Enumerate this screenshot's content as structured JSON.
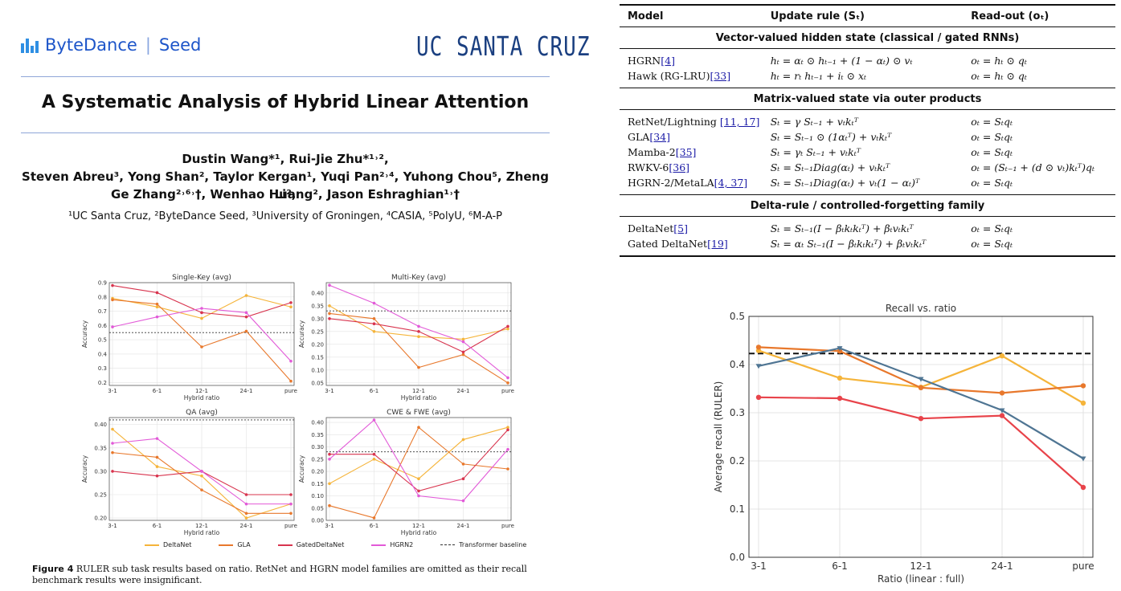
{
  "header": {
    "bytedance": "ByteDance",
    "seed": "Seed",
    "ucsc": "UC SANTA CRUZ"
  },
  "paper": {
    "title": "A Systematic Analysis of Hybrid Linear Attention",
    "authors_line1": "Dustin Wang*¹, Rui-Jie Zhu*¹˒²,",
    "authors_line2": "Steven Abreu³, Yong Shan², Taylor Kergan¹, Yuqi Pan²˒⁴, Yuhong Chou⁵, Zheng Li²,",
    "authors_line3": "Ge Zhang²˒⁶˒†, Wenhao Huang², Jason Eshraghian¹˒†",
    "affiliations": "¹UC Santa Cruz, ²ByteDance Seed, ³University of Groningen, ⁴CASIA, ⁵PolyU, ⁶M-A-P",
    "caption_label": "Figure 4",
    "caption_text": "RULER sub task results based on ratio. RetNet and HGRN model families are omitted as their recall benchmark results were insignificant."
  },
  "colors": {
    "DeltaNet": "#f5b43a",
    "GLA": "#e8782c",
    "GatedDeltaNet": "#d8344e",
    "HGRN2": "#e25ad8",
    "baseline": "#333333"
  },
  "chart_data": [
    {
      "type": "line",
      "title": "Single-Key (avg)",
      "categories": [
        "3-1",
        "6-1",
        "12-1",
        "24-1",
        "pure"
      ],
      "xlabel": "Hybrid ratio",
      "ylabel": "Accuracy",
      "ylim": [
        0.18,
        0.9
      ],
      "yticks": [
        0.2,
        0.3,
        0.4,
        0.5,
        0.6,
        0.7,
        0.8,
        0.9
      ],
      "baseline": 0.55,
      "series": [
        {
          "name": "DeltaNet",
          "values": [
            0.79,
            0.73,
            0.65,
            0.81,
            0.73
          ]
        },
        {
          "name": "GLA",
          "values": [
            0.78,
            0.75,
            0.45,
            0.56,
            0.21
          ]
        },
        {
          "name": "GatedDeltaNet",
          "values": [
            0.88,
            0.83,
            0.69,
            0.66,
            0.76
          ]
        },
        {
          "name": "HGRN2",
          "values": [
            0.59,
            0.66,
            0.72,
            0.69,
            0.35
          ]
        }
      ]
    },
    {
      "type": "line",
      "title": "Multi-Key (avg)",
      "categories": [
        "3-1",
        "6-1",
        "12-1",
        "24-1",
        "pure"
      ],
      "xlabel": "Hybrid ratio",
      "ylabel": "Accuracy",
      "ylim": [
        0.04,
        0.44
      ],
      "yticks": [
        0.05,
        0.1,
        0.15,
        0.2,
        0.25,
        0.3,
        0.35,
        0.4
      ],
      "baseline": 0.33,
      "series": [
        {
          "name": "DeltaNet",
          "values": [
            0.35,
            0.25,
            0.23,
            0.22,
            0.26
          ]
        },
        {
          "name": "GLA",
          "values": [
            0.32,
            0.3,
            0.11,
            0.16,
            0.05
          ]
        },
        {
          "name": "GatedDeltaNet",
          "values": [
            0.3,
            0.28,
            0.25,
            0.17,
            0.27
          ]
        },
        {
          "name": "HGRN2",
          "values": [
            0.43,
            0.36,
            0.27,
            0.21,
            0.07
          ]
        }
      ]
    },
    {
      "type": "line",
      "title": "QA (avg)",
      "categories": [
        "3-1",
        "6-1",
        "12-1",
        "24-1",
        "pure"
      ],
      "xlabel": "Hybrid ratio",
      "ylabel": "Accuracy",
      "ylim": [
        0.195,
        0.415
      ],
      "yticks": [
        0.2,
        0.25,
        0.3,
        0.35,
        0.4
      ],
      "baseline": 0.41,
      "series": [
        {
          "name": "DeltaNet",
          "values": [
            0.39,
            0.31,
            0.29,
            0.2,
            0.23
          ]
        },
        {
          "name": "GLA",
          "values": [
            0.34,
            0.33,
            0.26,
            0.21,
            0.21
          ]
        },
        {
          "name": "GatedDeltaNet",
          "values": [
            0.3,
            0.29,
            0.3,
            0.25,
            0.25
          ]
        },
        {
          "name": "HGRN2",
          "values": [
            0.36,
            0.37,
            0.3,
            0.23,
            0.23
          ]
        }
      ]
    },
    {
      "type": "line",
      "title": "CWE & FWE (avg)",
      "categories": [
        "3-1",
        "6-1",
        "12-1",
        "24-1",
        "pure"
      ],
      "xlabel": "Hybrid ratio",
      "ylabel": "Accuracy",
      "ylim": [
        0.0,
        0.42
      ],
      "yticks": [
        0.0,
        0.05,
        0.1,
        0.15,
        0.2,
        0.25,
        0.3,
        0.35,
        0.4
      ],
      "baseline": 0.28,
      "series": [
        {
          "name": "DeltaNet",
          "values": [
            0.15,
            0.25,
            0.17,
            0.33,
            0.38
          ]
        },
        {
          "name": "GLA",
          "values": [
            0.06,
            0.01,
            0.38,
            0.23,
            0.21
          ]
        },
        {
          "name": "GatedDeltaNet",
          "values": [
            0.27,
            0.27,
            0.12,
            0.17,
            0.37
          ]
        },
        {
          "name": "HGRN2",
          "values": [
            0.25,
            0.41,
            0.1,
            0.08,
            0.29
          ]
        }
      ]
    },
    {
      "type": "line",
      "title": "Recall vs. ratio",
      "categories": [
        "3-1",
        "6-1",
        "12-1",
        "24-1",
        "pure"
      ],
      "xlabel": "Ratio (linear : full)",
      "ylabel": "Average recall (RULER)",
      "ylim": [
        0.0,
        0.5
      ],
      "yticks": [
        0.0,
        0.1,
        0.2,
        0.3,
        0.4,
        0.5
      ],
      "baseline": 0.423,
      "series": [
        {
          "color": "#f5b43a",
          "values": [
            0.429,
            0.372,
            0.353,
            0.418,
            0.32
          ]
        },
        {
          "color": "#e8782c",
          "values": [
            0.436,
            0.428,
            0.352,
            0.341,
            0.356
          ]
        },
        {
          "color": "#e8434a",
          "values": [
            0.332,
            0.33,
            0.288,
            0.294,
            0.145
          ]
        },
        {
          "color": "#4f7593",
          "values": [
            0.397,
            0.434,
            0.37,
            0.305,
            0.205
          ]
        }
      ]
    }
  ],
  "legend": {
    "items": [
      "DeltaNet",
      "GLA",
      "GatedDeltaNet",
      "HGRN2"
    ],
    "baseline": "Transformer baseline"
  },
  "table": {
    "headers": [
      "Model",
      "Update rule (Sₜ)",
      "Read-out (oₜ)"
    ],
    "sections": [
      {
        "title": "Vector-valued hidden state (classical / gated RNNs)",
        "rows": [
          {
            "model": "HGRN",
            "ref": "[4]",
            "update": "hₜ = αₜ ⊙ hₜ₋₁ + (1 − αₜ) ⊙ vₜ",
            "readout": "oₜ = hₜ ⊙ qₜ"
          },
          {
            "model": "Hawk (RG-LRU)",
            "ref": "[33]",
            "update": "hₜ = rₜ hₜ₋₁ + iₜ ⊙ xₜ",
            "readout": "oₜ = hₜ ⊙ qₜ"
          }
        ]
      },
      {
        "title": "Matrix-valued state via outer products",
        "rows": [
          {
            "model": "RetNet/Lightning ",
            "ref": "[11, 17]",
            "update": "Sₜ = γ Sₜ₋₁ + vₜkₜᵀ",
            "readout": "oₜ = Sₜqₜ"
          },
          {
            "model": "GLA",
            "ref": "[34]",
            "update": "Sₜ = Sₜ₋₁ ⊙ (1αₜᵀ) + vₜkₜᵀ",
            "readout": "oₜ = Sₜqₜ"
          },
          {
            "model": "Mamba-2",
            "ref": "[35]",
            "update": "Sₜ = γₜ Sₜ₋₁ + vₜkₜᵀ",
            "readout": "oₜ = Sₜqₜ"
          },
          {
            "model": "RWKV-6",
            "ref": "[36]",
            "update": "Sₜ = Sₜ₋₁Diag(αₜ) + vₜkₜᵀ",
            "readout": "oₜ = (Sₜ₋₁ + (d ⊙ vₜ)kₜᵀ)qₜ"
          },
          {
            "model": "HGRN-2/MetaLA",
            "ref": "[4, 37]",
            "update": "Sₜ = Sₜ₋₁Diag(αₜ) + vₜ(1 − αₜ)ᵀ",
            "readout": "oₜ = Sₜqₜ"
          }
        ]
      },
      {
        "title": "Delta-rule / controlled-forgetting family",
        "rows": [
          {
            "model": "DeltaNet",
            "ref": "[5]",
            "update": "Sₜ = Sₜ₋₁(I − βₜkₜkₜᵀ) + βₜvₜkₜᵀ",
            "readout": "oₜ = Sₜqₜ"
          },
          {
            "model": "Gated DeltaNet",
            "ref": "[19]",
            "update": "Sₜ = αₜ Sₜ₋₁(I − βₜkₜkₜᵀ) + βₜvₜkₜᵀ",
            "readout": "oₜ = Sₜqₜ"
          }
        ]
      }
    ]
  }
}
